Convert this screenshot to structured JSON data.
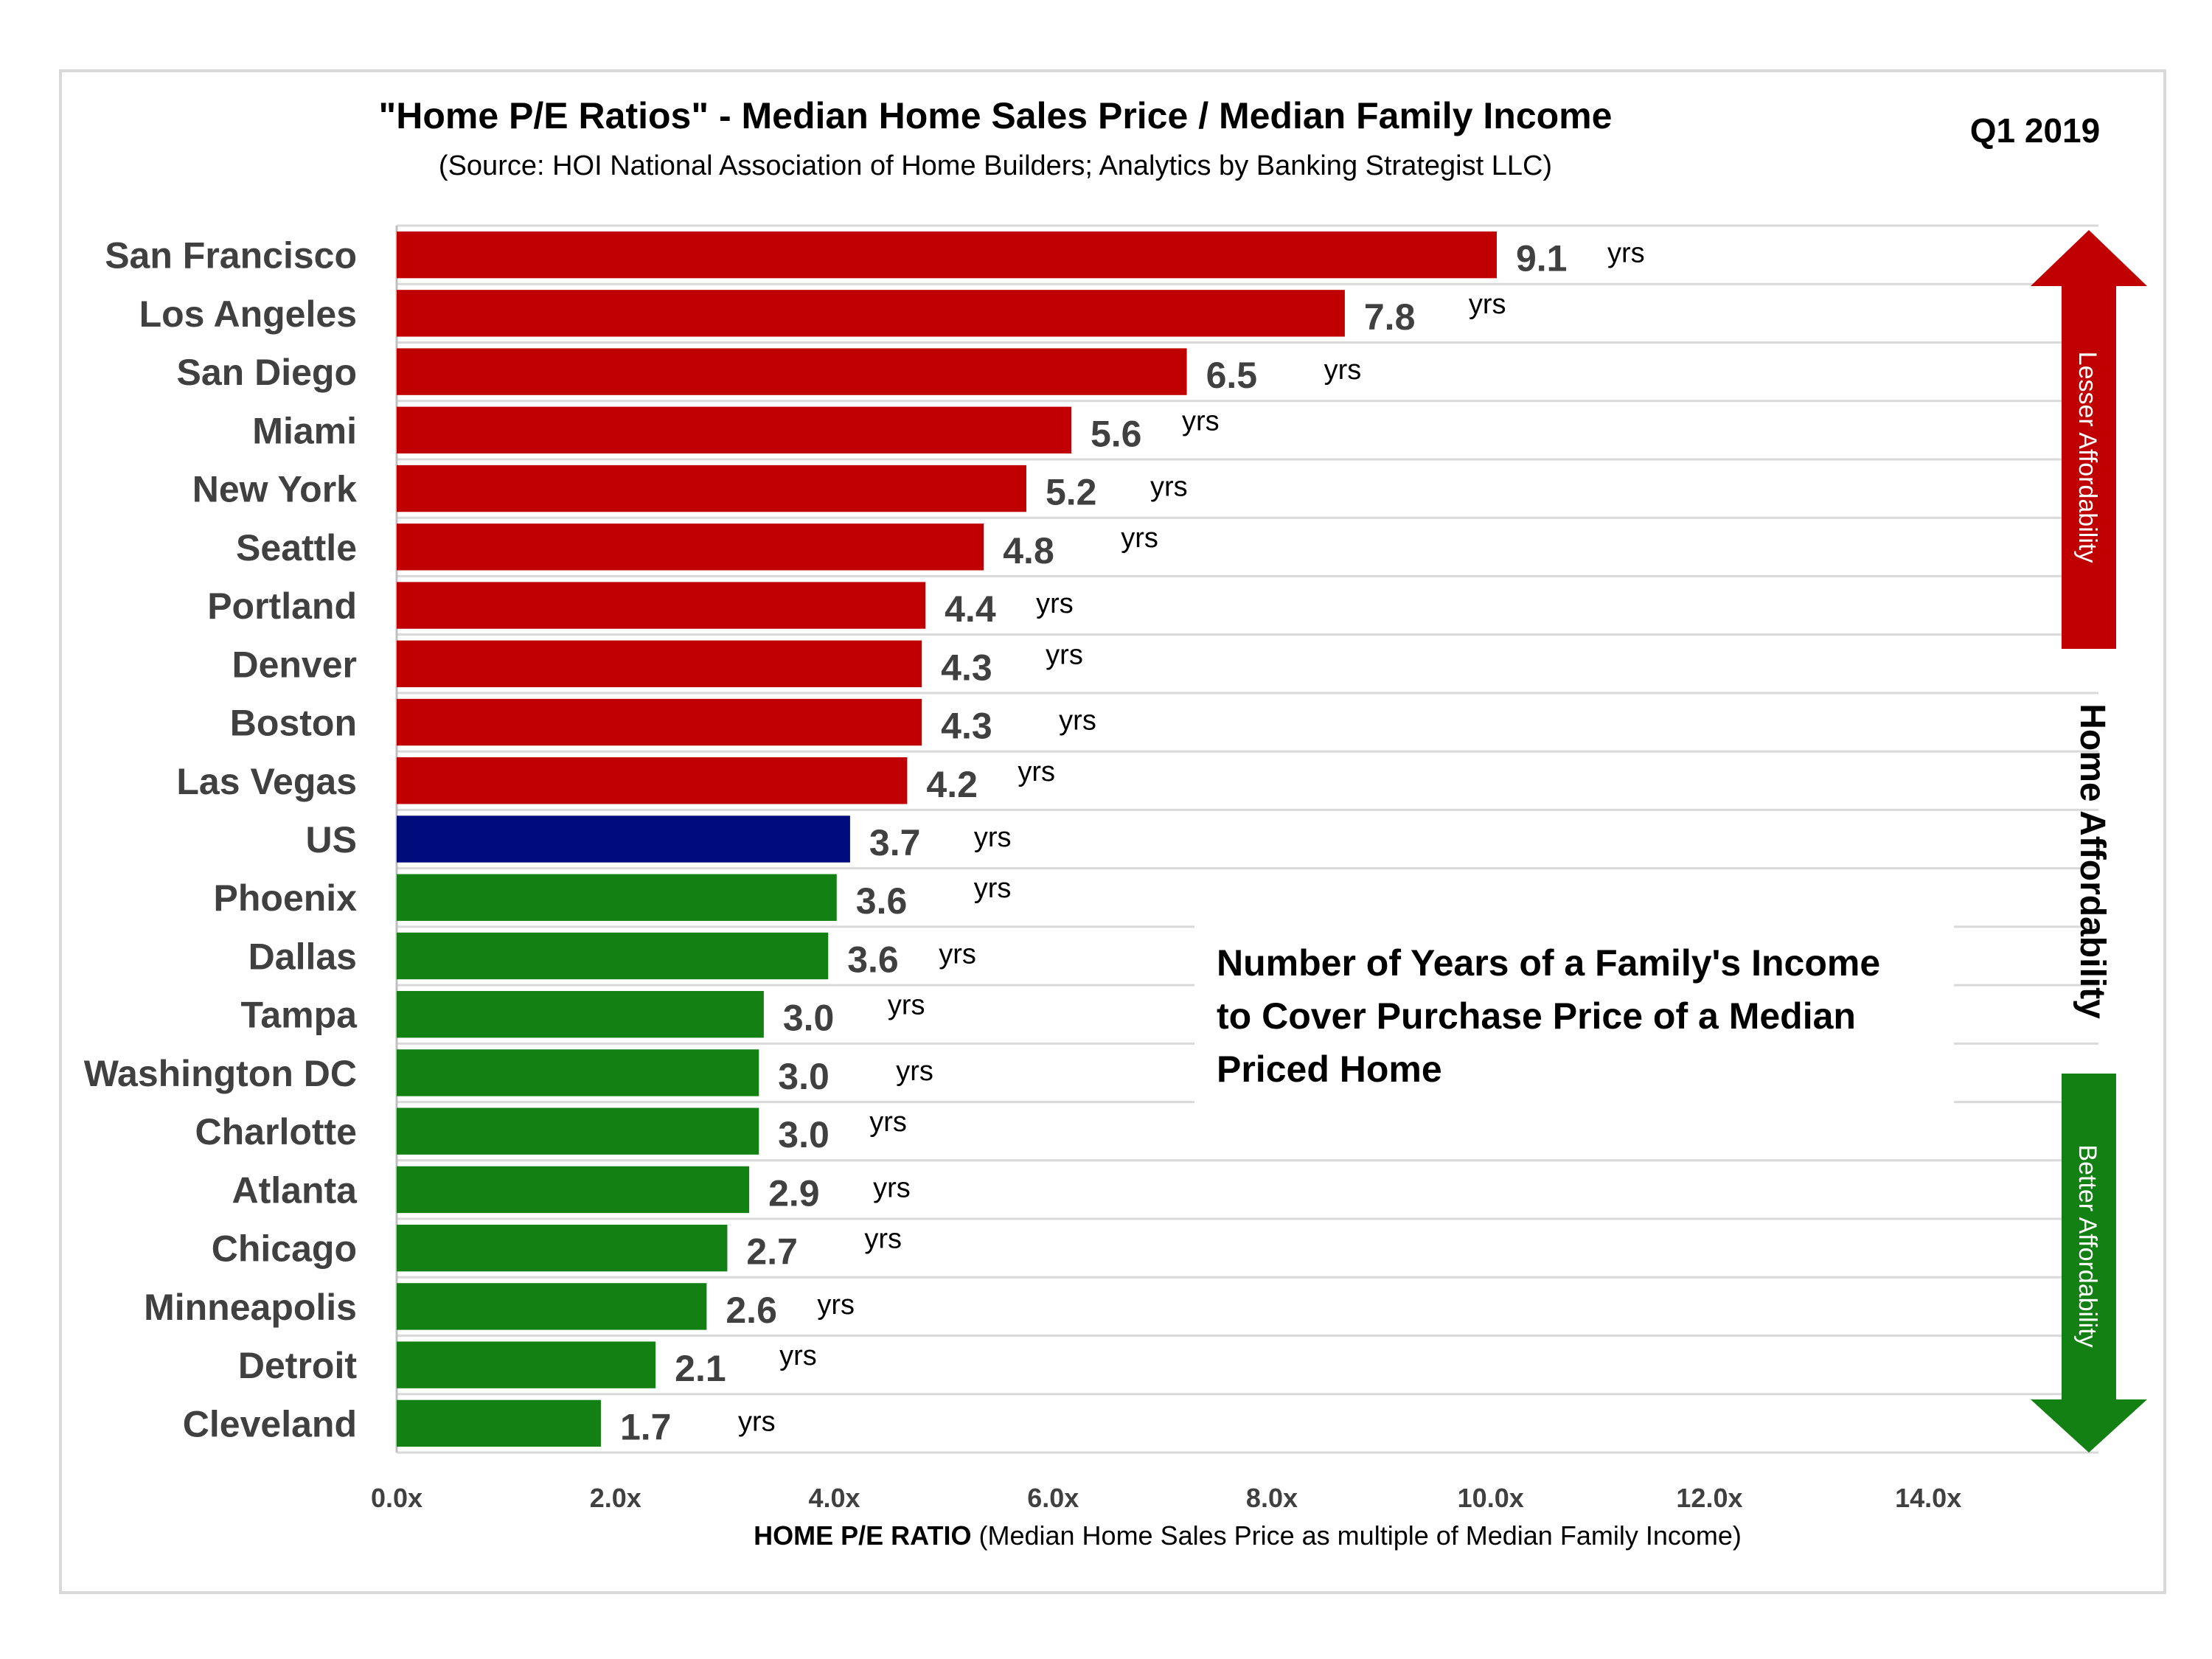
{
  "period": "Q1 2019",
  "annotation_lines": [
    "Number of Years of a Family's Income",
    "to Cover Purchase  Price of a Median",
    "Priced Home"
  ],
  "side": {
    "top_arrow_label": "Lesser Affordability",
    "middle_label": "Home Affordability",
    "bottom_arrow_label": "Better Affordability",
    "top_arrow_color": "#c00000",
    "bottom_arrow_color": "#138013"
  },
  "chart_data": {
    "type": "bar",
    "orientation": "horizontal",
    "title": "\"Home P/E Ratios\" - Median Home Sales Price / Median Family Income",
    "subtitle": "(Source: HOI National Association of Home Builders; Analytics by Banking Strategist LLC)",
    "xlabel_bold": "HOME P/E RATIO",
    "xlabel_rest": " (Median Home Sales  Price as multiple of Median Family Income)",
    "xlim": [
      0,
      14
    ],
    "xticks": [
      "0.0x",
      "2.0x",
      "4.0x",
      "6.0x",
      "8.0x",
      "10.0x",
      "12.0x",
      "14.0x"
    ],
    "unit_label": "yrs",
    "grid": true,
    "categories": [
      "San Francisco",
      "Los Angeles",
      "San Diego",
      "Miami",
      "New York",
      "Seattle",
      "Portland",
      "Denver",
      "Boston",
      "Las Vegas",
      "US",
      "Phoenix",
      "Dallas",
      "Tampa",
      "Washington DC",
      "Charlotte",
      "Atlanta",
      "Chicago",
      "Minneapolis",
      "Detroit",
      "Cleveland"
    ],
    "values": [
      9.05,
      7.8,
      6.5,
      5.55,
      5.18,
      4.83,
      4.35,
      4.32,
      4.32,
      4.2,
      3.73,
      3.62,
      3.55,
      3.02,
      2.98,
      2.98,
      2.9,
      2.72,
      2.55,
      2.13,
      1.68
    ],
    "value_labels": [
      "9.1",
      "7.8",
      "6.5",
      "5.6",
      "5.2",
      "4.8",
      "4.4",
      "4.3",
      "4.3",
      "4.2",
      "3.7",
      "3.6",
      "3.6",
      "3.0",
      "3.0",
      "3.0",
      "2.9",
      "2.7",
      "2.6",
      "2.1",
      "1.7"
    ],
    "bar_colors": [
      "#c00000",
      "#c00000",
      "#c00000",
      "#c00000",
      "#c00000",
      "#c00000",
      "#c00000",
      "#c00000",
      "#c00000",
      "#c00000",
      "#000c7b",
      "#138013",
      "#138013",
      "#138013",
      "#138013",
      "#138013",
      "#138013",
      "#138013",
      "#138013",
      "#138013",
      "#138013"
    ]
  }
}
